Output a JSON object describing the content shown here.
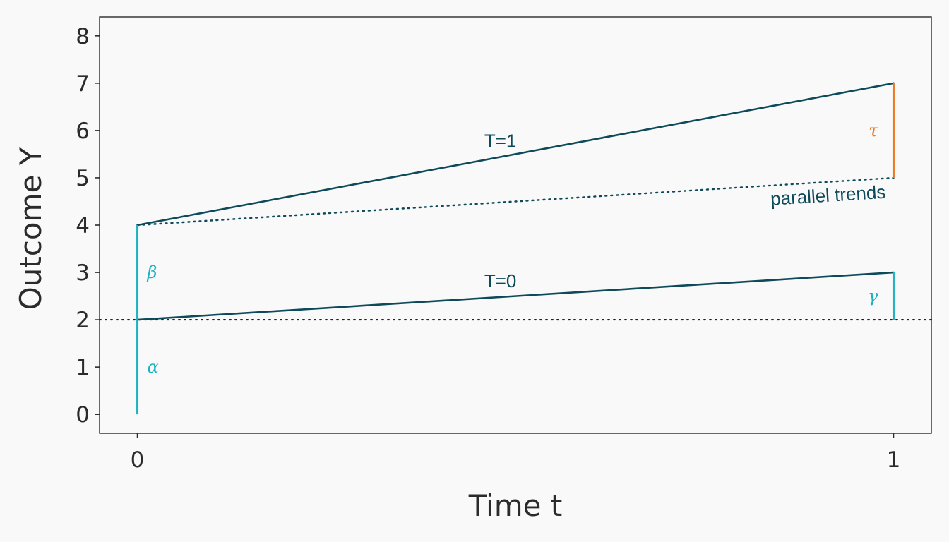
{
  "chart_data": {
    "type": "line",
    "title": "",
    "xlabel": "Time t",
    "ylabel": "Outcome Y",
    "xlim": [
      -0.05,
      1.05
    ],
    "ylim": [
      -0.4,
      8.4
    ],
    "x_ticks": [
      0,
      1
    ],
    "x_tick_labels": [
      "0",
      "1"
    ],
    "y_ticks": [
      0,
      1,
      2,
      3,
      4,
      5,
      6,
      7,
      8
    ],
    "y_tick_labels": [
      "0",
      "1",
      "2",
      "3",
      "4",
      "5",
      "6",
      "7",
      "8"
    ],
    "grid": false,
    "series": [
      {
        "label": "T=1",
        "x": [
          0,
          1
        ],
        "y": [
          4,
          7
        ],
        "color": "#0d4a5a",
        "style": "solid"
      },
      {
        "label": "T=0",
        "x": [
          0,
          1
        ],
        "y": [
          2,
          3
        ],
        "color": "#0d4a5a",
        "style": "solid"
      },
      {
        "label": "parallel trends",
        "x": [
          0,
          1
        ],
        "y": [
          4,
          5
        ],
        "color": "#0d4a5a",
        "style": "dotted"
      }
    ],
    "reference_lines": [
      {
        "type": "horizontal",
        "y": 2,
        "style": "dotted",
        "color": "#000000"
      }
    ],
    "segments": [
      {
        "label": "α",
        "x": 0,
        "y0": 0,
        "y1": 2,
        "color": "#1ab3c2"
      },
      {
        "label": "β",
        "x": 0,
        "y0": 2,
        "y1": 4,
        "color": "#1ab3c2"
      },
      {
        "label": "γ",
        "x": 1,
        "y0": 2,
        "y1": 3,
        "color": "#1ab3c2"
      },
      {
        "label": "τ",
        "x": 1,
        "y0": 5,
        "y1": 7,
        "color": "#f07820"
      }
    ]
  },
  "colors": {
    "background": "#f9f9f9",
    "line": "#0d4a5a",
    "cyan": "#1ab3c2",
    "orange": "#f07820",
    "axis": "#2b2b2b"
  }
}
